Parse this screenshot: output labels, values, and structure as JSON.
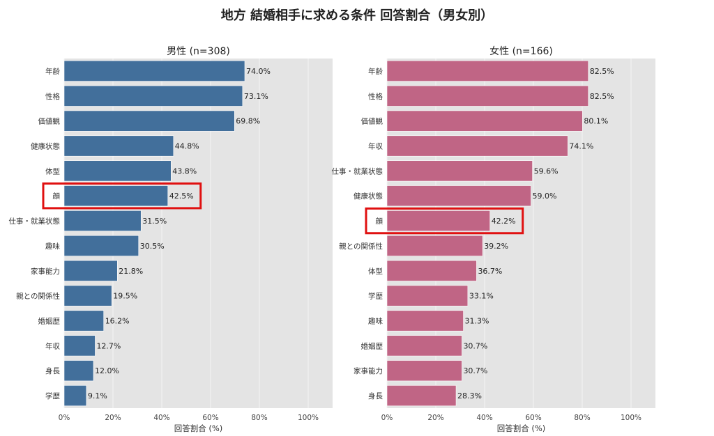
{
  "title": "地方 結婚相手に求める条件 回答割合（男女別）",
  "colors": {
    "male": "#426f9b",
    "female": "#c06585",
    "highlight": "#e01010",
    "panel_bg": "#e4e4e4",
    "grid": "#f4f4f4"
  },
  "chart_data": [
    {
      "type": "bar",
      "orientation": "horizontal",
      "title": "男性 (n=308)",
      "xlabel": "回答割合 (%)",
      "xlim": [
        0,
        110
      ],
      "xticks": [
        "0%",
        "20%",
        "40%",
        "60%",
        "80%",
        "100%"
      ],
      "xtick_values": [
        0,
        20,
        40,
        60,
        80,
        100
      ],
      "categories": [
        "年齢",
        "性格",
        "価値観",
        "健康状態",
        "体型",
        "顔",
        "仕事・就業状態",
        "趣味",
        "家事能力",
        "親との関係性",
        "婚姻歴",
        "年収",
        "身長",
        "学歴"
      ],
      "values": [
        74.0,
        73.1,
        69.8,
        44.8,
        43.8,
        42.5,
        31.5,
        30.5,
        21.8,
        19.5,
        16.2,
        12.7,
        12.0,
        9.1
      ],
      "value_labels": [
        "74.0%",
        "73.1%",
        "69.8%",
        "44.8%",
        "43.8%",
        "42.5%",
        "31.5%",
        "30.5%",
        "21.8%",
        "19.5%",
        "16.2%",
        "12.7%",
        "12.0%",
        "9.1%"
      ],
      "highlight": "顔",
      "color": "#426f9b",
      "grid": true
    },
    {
      "type": "bar",
      "orientation": "horizontal",
      "title": "女性 (n=166)",
      "xlabel": "回答割合 (%)",
      "xlim": [
        0,
        110
      ],
      "xticks": [
        "0%",
        "20%",
        "40%",
        "60%",
        "80%",
        "100%"
      ],
      "xtick_values": [
        0,
        20,
        40,
        60,
        80,
        100
      ],
      "categories": [
        "年齢",
        "性格",
        "価値観",
        "年収",
        "仕事・就業状態",
        "健康状態",
        "顔",
        "親との関係性",
        "体型",
        "学歴",
        "趣味",
        "婚姻歴",
        "家事能力",
        "身長"
      ],
      "values": [
        82.5,
        82.5,
        80.1,
        74.1,
        59.6,
        59.0,
        42.2,
        39.2,
        36.7,
        33.1,
        31.3,
        30.7,
        30.7,
        28.3
      ],
      "value_labels": [
        "82.5%",
        "82.5%",
        "80.1%",
        "74.1%",
        "59.6%",
        "59.0%",
        "42.2%",
        "39.2%",
        "36.7%",
        "33.1%",
        "31.3%",
        "30.7%",
        "30.7%",
        "28.3%"
      ],
      "highlight": "顔",
      "color": "#c06585",
      "grid": true
    }
  ]
}
